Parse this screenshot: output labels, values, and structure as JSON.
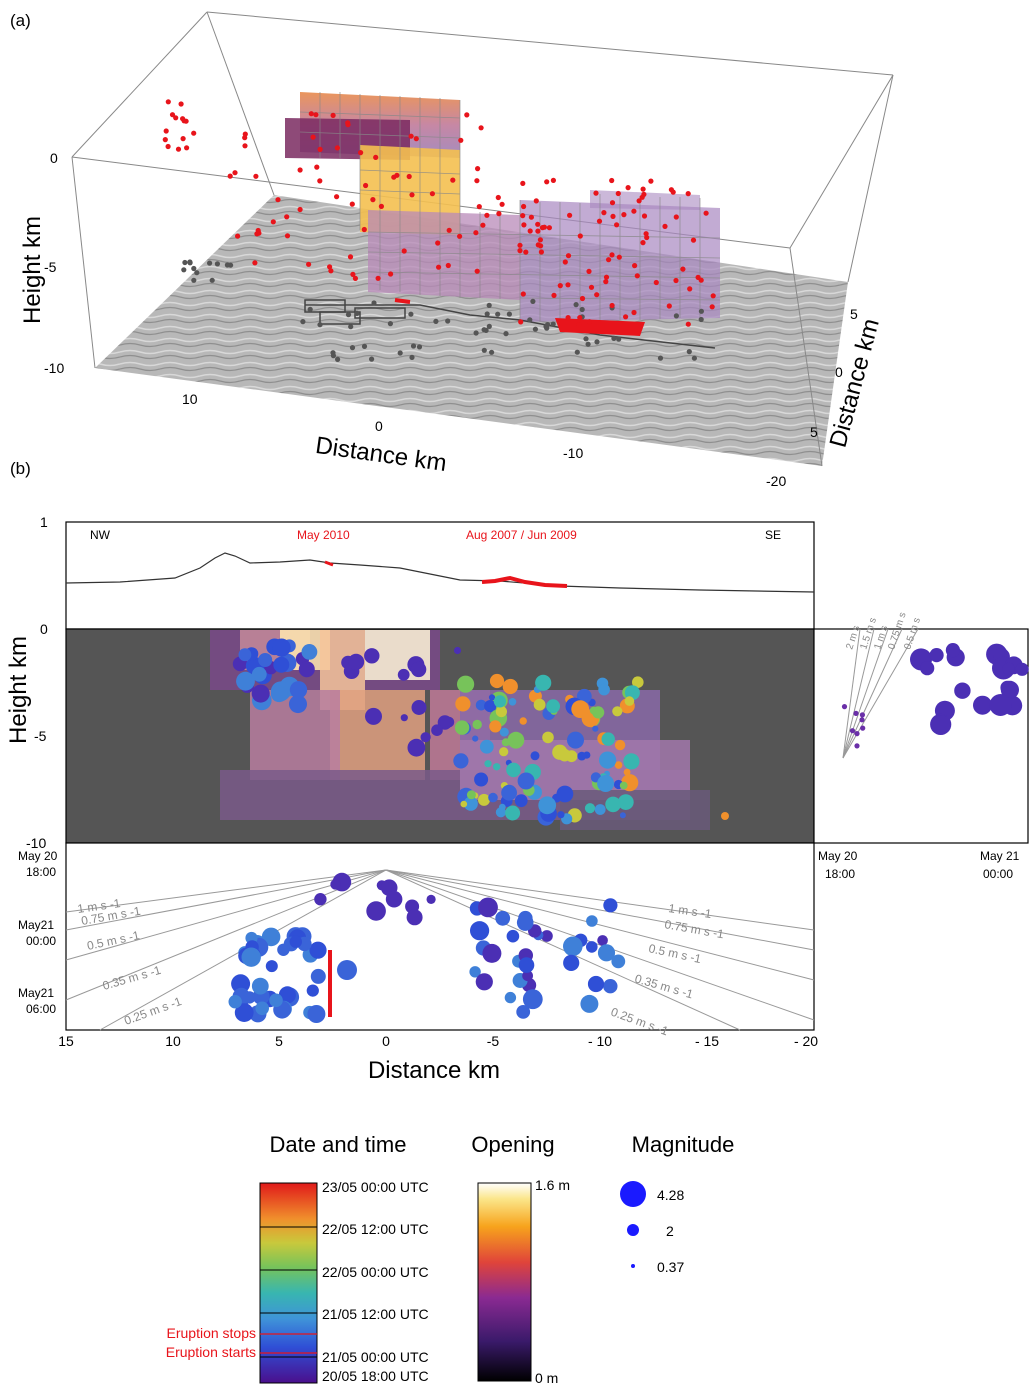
{
  "panel_a": {
    "label": "(a)",
    "ylabel": "Height km",
    "xlabel": "Distance km",
    "zlabel": "Distance km",
    "height_ticks": [
      "0",
      "-5",
      "-10"
    ],
    "x_ticks": [
      "10",
      "0",
      "-10",
      "-20"
    ],
    "z_ticks": [
      "5",
      "0",
      "5"
    ]
  },
  "panel_b": {
    "label": "(b)",
    "ylabel": "Height km",
    "xlabel": "Distance km",
    "profile": {
      "nw": "NW",
      "se": "SE",
      "label_2010": "May 2010",
      "label_2007": "Aug 2007 / Jun 2009"
    },
    "height_ticks": [
      "1",
      "0",
      "-5",
      "-10"
    ],
    "x_ticks": [
      "15",
      "10",
      "5",
      "0",
      "-5",
      "- 10",
      "- 15",
      "- 20"
    ],
    "time_ticks": [
      {
        "day": "May 20",
        "time": "18:00"
      },
      {
        "day": "May21",
        "time": "00:00"
      },
      {
        "day": "May21",
        "time": "06:00"
      }
    ],
    "side_time_ticks": [
      {
        "day": "May 20",
        "time": "18:00"
      },
      {
        "day": "May 21",
        "time": "00:00"
      }
    ],
    "speeds_left": [
      "1 m s",
      "0.75 m s",
      "0.5 m s",
      "0.35 m s",
      "0.25 m s"
    ],
    "speeds_right": [
      "1 m s",
      "0.75 m s",
      "0.5 m s",
      "0.35 m s",
      "0.25 m s"
    ],
    "speeds_side": [
      "2 m s",
      "1.5 m s",
      "1 m s",
      "0.75 m s",
      "0.5 m s"
    ],
    "speed_exponent": "-1"
  },
  "legend": {
    "date_title": "Date and time",
    "date_ticks": [
      "23/05 00:00 UTC",
      "22/05 12:00 UTC",
      "22/05 00:00 UTC",
      "21/05 12:00 UTC",
      "21/05 00:00 UTC",
      "20/05 18:00 UTC"
    ],
    "eruption_stops": "Eruption stops",
    "eruption_starts": "Eruption starts",
    "opening_title": "Opening",
    "opening_max": "1.6 m",
    "opening_min": "0 m",
    "magnitude_title": "Magnitude",
    "magnitudes": [
      "4.28",
      "2",
      "0.37"
    ]
  },
  "colors": {
    "event_red": "#e8141b",
    "event_gray": "#555555",
    "dark_bg": "#555555",
    "magnitude_blue": "#1a1aff"
  }
}
